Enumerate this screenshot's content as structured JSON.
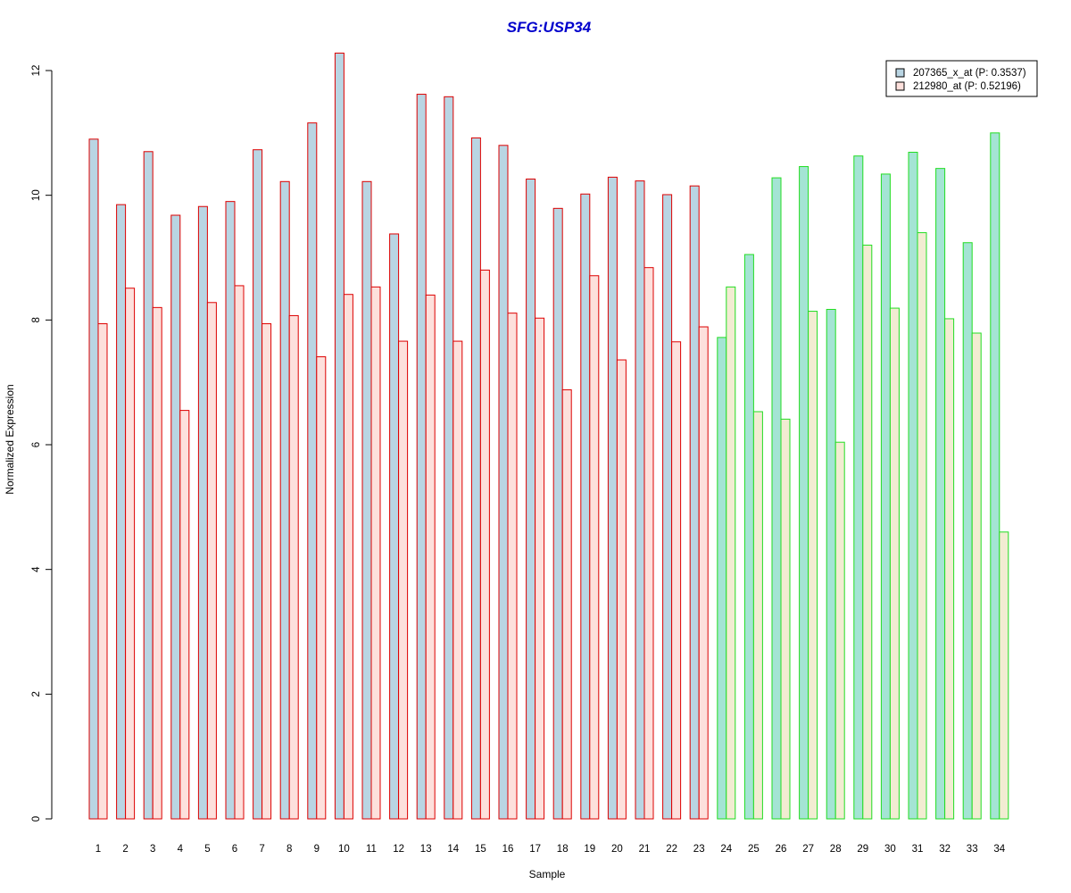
{
  "chart_data": {
    "type": "bar",
    "title": "SFG:USP34",
    "xlabel": "Sample",
    "ylabel": "Normalized Expression",
    "ylim": [
      0,
      12
    ],
    "yticks": [
      "0",
      "2",
      "4",
      "6",
      "8",
      "10",
      "12"
    ],
    "categories": [
      "1",
      "2",
      "3",
      "4",
      "5",
      "6",
      "7",
      "8",
      "9",
      "10",
      "11",
      "12",
      "13",
      "14",
      "15",
      "16",
      "17",
      "18",
      "19",
      "20",
      "21",
      "22",
      "23",
      "24",
      "25",
      "26",
      "27",
      "28",
      "29",
      "30",
      "31",
      "32",
      "33",
      "34"
    ],
    "series": [
      {
        "name": "207365_x_at (P: 0.3537)",
        "values": [
          10.9,
          9.85,
          10.7,
          9.68,
          9.82,
          9.9,
          10.73,
          10.22,
          11.16,
          12.28,
          10.22,
          9.38,
          11.62,
          11.58,
          10.92,
          10.8,
          10.26,
          9.79,
          10.02,
          10.29,
          10.23,
          10.01,
          10.15,
          7.72,
          9.05,
          10.28,
          10.46,
          8.17,
          10.63,
          10.34,
          10.69,
          10.43,
          9.24,
          11.0
        ]
      },
      {
        "name": "212980_at (P: 0.52196)",
        "values": [
          7.94,
          8.51,
          8.2,
          6.55,
          8.28,
          8.55,
          7.94,
          8.07,
          7.41,
          8.41,
          8.53,
          7.66,
          8.4,
          7.66,
          8.8,
          8.11,
          8.03,
          6.88,
          8.71,
          7.36,
          8.84,
          7.65,
          7.89,
          8.53,
          6.53,
          6.41,
          8.14,
          6.04,
          9.2,
          8.19,
          9.4,
          8.02,
          7.79,
          4.6
        ]
      }
    ],
    "groups": [
      {
        "from": 1,
        "to": 23,
        "border_color": "#dd0000",
        "fill_colors": [
          "#b9d5e3",
          "#fde0dc"
        ]
      },
      {
        "from": 24,
        "to": 34,
        "border_color": "#22dd22",
        "fill_colors": [
          "#a4e4d4",
          "#f2ecd2"
        ]
      }
    ],
    "legend": {
      "position": "top-right",
      "swatch_border": "#000000",
      "swatch_colors": [
        "#b9d5e3",
        "#fde0dc"
      ]
    },
    "grid": false
  }
}
